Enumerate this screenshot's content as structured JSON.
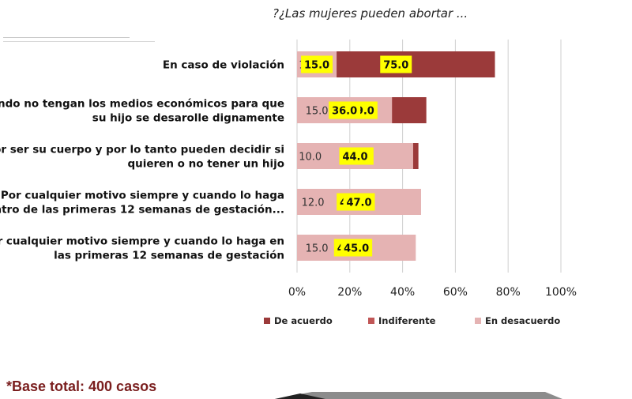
{
  "chart_data": {
    "type": "bar",
    "orientation": "horizontal",
    "stacked": "percent",
    "title": "?¿Las mujeres pueden abortar  ...",
    "categories": [
      [
        "En caso de violación"
      ],
      [
        "Cuando no tengan los medios económicos para que",
        "su hijo se desarolle dignamente"
      ],
      [
        "Por ser su cuerpo y por lo tanto pueden decidir si",
        "quieren o no tener un hijo"
      ],
      [
        "Por cualquier motivo siempre y cuando lo haga",
        "dentro de las primeras 12 semanas de gestación..."
      ],
      [
        "Por cualquier motivo siempre y cuando lo haga en",
        "las primeras 12 semanas de gestación"
      ]
    ],
    "series": [
      {
        "name": "De acuerdo",
        "color": "#9b3a3a",
        "values": [
          75.0,
          49.0,
          46.0,
          42.0,
          40.0
        ]
      },
      {
        "name": "Indiferente",
        "color": "#c05656",
        "values": [
          10.0,
          15.0,
          10.0,
          12.0,
          15.0
        ]
      },
      {
        "name": "En desacuerdo",
        "color": "#e5b3b3",
        "values": [
          15.0,
          36.0,
          44.0,
          47.0,
          45.0
        ]
      }
    ],
    "x_ticks": [
      "0%",
      "20%",
      "40%",
      "60%",
      "80%",
      "100%"
    ],
    "xlim": [
      0,
      100
    ],
    "grid": true,
    "legend_position": "bottom",
    "highlight_color": "#ffff00"
  },
  "footnote": "*Base total: 400 casos"
}
